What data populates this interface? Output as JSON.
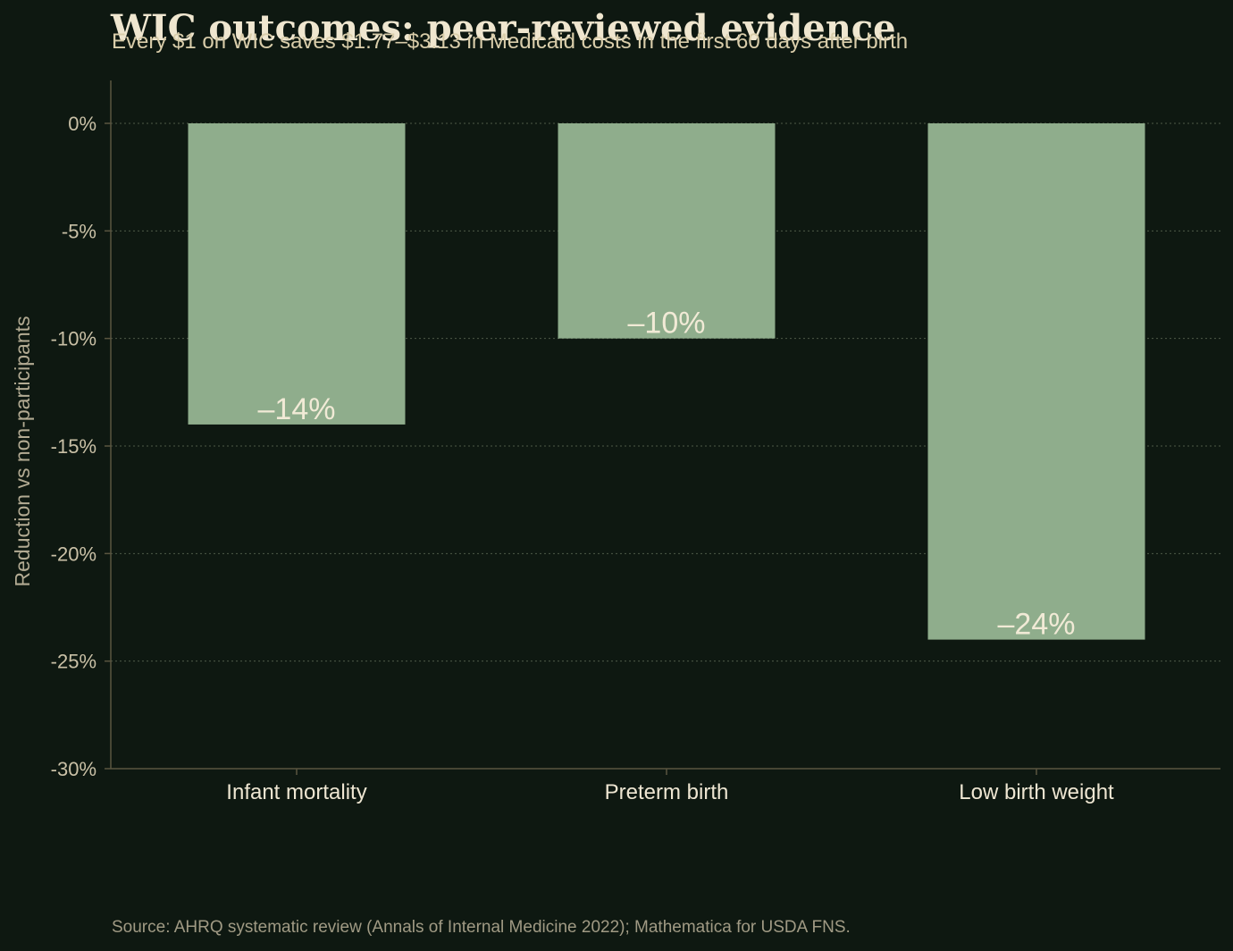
{
  "header": {
    "title": "WIC outcomes: peer-reviewed evidence",
    "subtitle": "Every $1 on WIC saves $1.77–$3.13 in Medicaid costs in the first 60 days after birth"
  },
  "footer": {
    "source": "Source: AHRQ systematic review (Annals of Internal Medicine 2022); Mathematica for USDA FNS."
  },
  "colors": {
    "background": "#0e1811",
    "bar": "#8fad8c",
    "axis": "#5a5540",
    "grid": "#4f5a48"
  },
  "chart_data": {
    "type": "bar",
    "categories": [
      "Infant mortality",
      "Preterm birth",
      "Low birth weight"
    ],
    "values": [
      -14,
      -10,
      -24
    ],
    "value_labels": [
      "–14%",
      "–10%",
      "–24%"
    ],
    "ylabel": "Reduction vs non-participants",
    "ylim": [
      -30,
      0
    ],
    "yticks": [
      0,
      -5,
      -10,
      -15,
      -20,
      -25,
      -30
    ],
    "ytick_labels": [
      "0%",
      "-5%",
      "-10%",
      "-15%",
      "-20%",
      "-25%",
      "-30%"
    ],
    "grid": true
  }
}
